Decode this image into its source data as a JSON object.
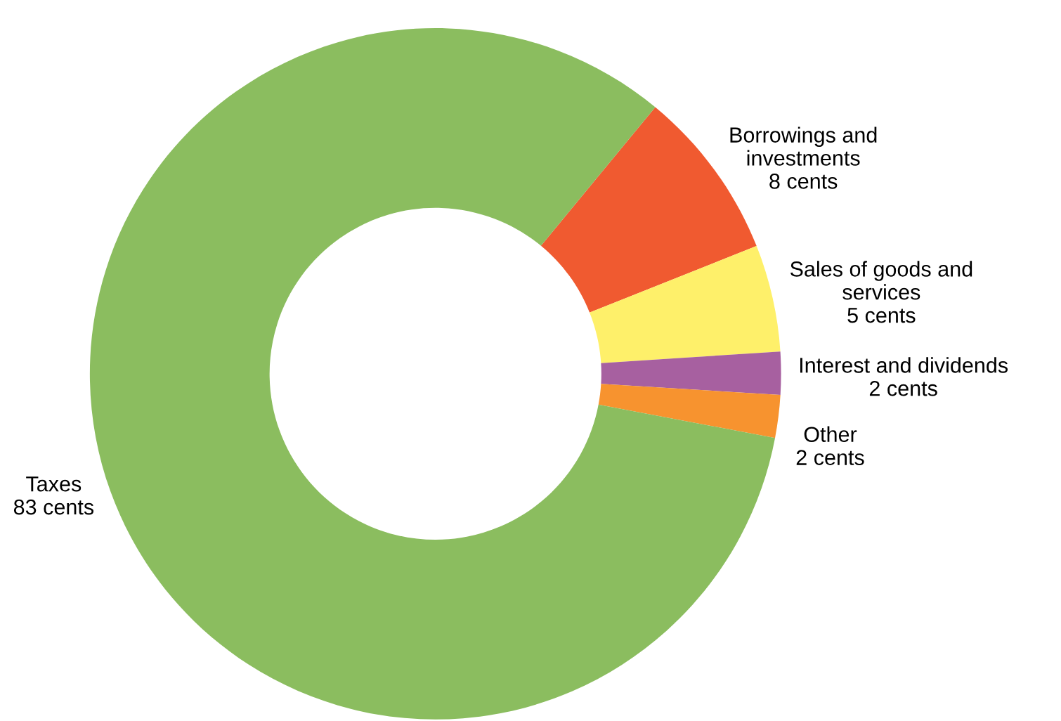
{
  "chart_data": {
    "type": "donut",
    "categories": [
      "Borrowings and\ninvestments",
      "Sales of goods and\nservices",
      "Interest and dividends",
      "Other",
      "Taxes"
    ],
    "values": [
      8,
      5,
      2,
      2,
      83
    ],
    "value_labels": [
      "8 cents",
      "5 cents",
      "2 cents",
      "2 cents",
      "83 cents"
    ],
    "colors": [
      "#f05a30",
      "#fef06a",
      "#a760a0",
      "#f7932f",
      "#8bbd5f"
    ],
    "legend": false
  }
}
